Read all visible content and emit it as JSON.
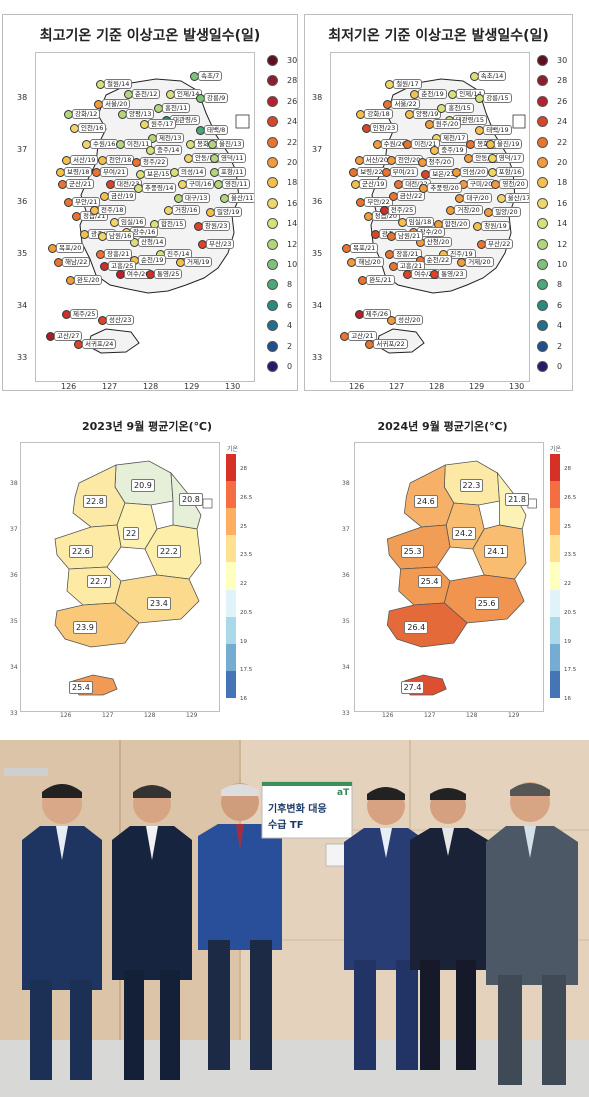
{
  "top_left": {
    "title": "최고기온 기준 이상고온 발생일수(일)",
    "y_ticks": [
      "38",
      "37",
      "36",
      "35",
      "34",
      "33"
    ],
    "x_ticks": [
      "126",
      "127",
      "128",
      "129",
      "130"
    ],
    "legend": [
      {
        "label": "30",
        "color": "#5e1020"
      },
      {
        "label": "28",
        "color": "#8c1d2c"
      },
      {
        "label": "26",
        "color": "#b8202e"
      },
      {
        "label": "24",
        "color": "#d7452b"
      },
      {
        "label": "22",
        "color": "#e8742f"
      },
      {
        "label": "20",
        "color": "#f09b3c"
      },
      {
        "label": "18",
        "color": "#f4bf4f"
      },
      {
        "label": "16",
        "color": "#f0d66a"
      },
      {
        "label": "14",
        "color": "#d9df7b"
      },
      {
        "label": "12",
        "color": "#b3d57c"
      },
      {
        "label": "10",
        "color": "#7fc07a"
      },
      {
        "label": "8",
        "color": "#4ba67a"
      },
      {
        "label": "6",
        "color": "#2a8a7d"
      },
      {
        "label": "4",
        "color": "#226e8c"
      },
      {
        "label": "2",
        "color": "#1f4f8f"
      },
      {
        "label": "0",
        "color": "#241c6b"
      }
    ],
    "stations": [
      {
        "label": "속초/7",
        "color": "#7fc07a"
      },
      {
        "label": "철원/14",
        "color": "#d9df7b"
      },
      {
        "label": "춘천/12",
        "color": "#b3d57c"
      },
      {
        "label": "인제/14",
        "color": "#d9df7b"
      },
      {
        "label": "강릉/9",
        "color": "#7fc07a"
      },
      {
        "label": "서울/20",
        "color": "#f09b3c"
      },
      {
        "label": "강화/12",
        "color": "#b3d57c"
      },
      {
        "label": "양평/13",
        "color": "#b3d57c"
      },
      {
        "label": "홍천/11",
        "color": "#b3d57c"
      },
      {
        "label": "대관령/5",
        "color": "#2a8a7d"
      },
      {
        "label": "원주/17",
        "color": "#f0d66a"
      },
      {
        "label": "인천/16",
        "color": "#f0d66a"
      },
      {
        "label": "태백/8",
        "color": "#4ba67a"
      },
      {
        "label": "제천/13",
        "color": "#b3d57c"
      },
      {
        "label": "수원/16",
        "color": "#f0d66a"
      },
      {
        "label": "이천/11",
        "color": "#b3d57c"
      },
      {
        "label": "충주/14",
        "color": "#d9df7b"
      },
      {
        "label": "봉화/14",
        "color": "#d9df7b"
      },
      {
        "label": "울진/13",
        "color": "#b3d57c"
      },
      {
        "label": "서산/19",
        "color": "#f4bf4f"
      },
      {
        "label": "천안/18",
        "color": "#f4bf4f"
      },
      {
        "label": "청주/22",
        "color": "#e8742f"
      },
      {
        "label": "안동/16",
        "color": "#f0d66a"
      },
      {
        "label": "영덕/11",
        "color": "#b3d57c"
      },
      {
        "label": "보령/18",
        "color": "#f4bf4f"
      },
      {
        "label": "부여/21",
        "color": "#e8742f"
      },
      {
        "label": "보은/15",
        "color": "#d9df7b"
      },
      {
        "label": "의성/14",
        "color": "#d9df7b"
      },
      {
        "label": "포항/11",
        "color": "#b3d57c"
      },
      {
        "label": "군산/21",
        "color": "#e8742f"
      },
      {
        "label": "대전/23",
        "color": "#d7452b"
      },
      {
        "label": "구미/16",
        "color": "#f0d66a"
      },
      {
        "label": "영천/11",
        "color": "#b3d57c"
      },
      {
        "label": "울산/11",
        "color": "#b3d57c"
      },
      {
        "label": "부안/21",
        "color": "#e8742f"
      },
      {
        "label": "금산/19",
        "color": "#f4bf4f"
      },
      {
        "label": "추풍령/14",
        "color": "#d9df7b"
      },
      {
        "label": "대구/13",
        "color": "#b3d57c"
      },
      {
        "label": "밀양/19",
        "color": "#f4bf4f"
      },
      {
        "label": "정읍/21",
        "color": "#e8742f"
      },
      {
        "label": "전주/18",
        "color": "#f4bf4f"
      },
      {
        "label": "임실/16",
        "color": "#f0d66a"
      },
      {
        "label": "합천/15",
        "color": "#d9df7b"
      },
      {
        "label": "거창/16",
        "color": "#f0d66a"
      },
      {
        "label": "장수/16",
        "color": "#f0d66a"
      },
      {
        "label": "산청/14",
        "color": "#d9df7b"
      },
      {
        "label": "창원/23",
        "color": "#d7452b"
      },
      {
        "label": "광주/19",
        "color": "#f4bf4f"
      },
      {
        "label": "남원/16",
        "color": "#f0d66a"
      },
      {
        "label": "진주/14",
        "color": "#d9df7b"
      },
      {
        "label": "부산/23",
        "color": "#d7452b"
      },
      {
        "label": "목포/20",
        "color": "#f09b3c"
      },
      {
        "label": "장흥/21",
        "color": "#e8742f"
      },
      {
        "label": "순천/19",
        "color": "#f4bf4f"
      },
      {
        "label": "거제/19",
        "color": "#f4bf4f"
      },
      {
        "label": "해남/22",
        "color": "#e8742f"
      },
      {
        "label": "고흥/25",
        "color": "#c9322c"
      },
      {
        "label": "여수/26",
        "color": "#b8202e"
      },
      {
        "label": "통영/25",
        "color": "#c9322c"
      },
      {
        "label": "완도/20",
        "color": "#f09b3c"
      },
      {
        "label": "제주/25",
        "color": "#c9322c"
      },
      {
        "label": "성산/23",
        "color": "#d7452b"
      },
      {
        "label": "고산/27",
        "color": "#a3202c"
      },
      {
        "label": "서귀포/24",
        "color": "#d7452b"
      }
    ]
  },
  "top_right": {
    "title": "최저기온 기준 이상고온 발생일수(일)",
    "y_ticks": [
      "38",
      "37",
      "36",
      "35",
      "34",
      "33"
    ],
    "x_ticks": [
      "126",
      "127",
      "128",
      "129",
      "130"
    ],
    "legend": [
      {
        "label": "30",
        "color": "#5e1020"
      },
      {
        "label": "28",
        "color": "#8c1d2c"
      },
      {
        "label": "26",
        "color": "#b8202e"
      },
      {
        "label": "24",
        "color": "#d7452b"
      },
      {
        "label": "22",
        "color": "#e8742f"
      },
      {
        "label": "20",
        "color": "#f09b3c"
      },
      {
        "label": "18",
        "color": "#f4bf4f"
      },
      {
        "label": "16",
        "color": "#f0d66a"
      },
      {
        "label": "14",
        "color": "#d9df7b"
      },
      {
        "label": "12",
        "color": "#b3d57c"
      },
      {
        "label": "10",
        "color": "#7fc07a"
      },
      {
        "label": "8",
        "color": "#4ba67a"
      },
      {
        "label": "6",
        "color": "#2a8a7d"
      },
      {
        "label": "4",
        "color": "#226e8c"
      },
      {
        "label": "2",
        "color": "#1f4f8f"
      },
      {
        "label": "0",
        "color": "#241c6b"
      }
    ],
    "stations": [
      {
        "label": "속초/14",
        "color": "#d9df7b"
      },
      {
        "label": "철원/17",
        "color": "#f0d66a"
      },
      {
        "label": "춘천/19",
        "color": "#f4bf4f"
      },
      {
        "label": "인제/14",
        "color": "#d9df7b"
      },
      {
        "label": "강릉/15",
        "color": "#d9df7b"
      },
      {
        "label": "서울/22",
        "color": "#e8742f"
      },
      {
        "label": "강화/18",
        "color": "#f4bf4f"
      },
      {
        "label": "양평/19",
        "color": "#f4bf4f"
      },
      {
        "label": "홍천/15",
        "color": "#d9df7b"
      },
      {
        "label": "대관령/15",
        "color": "#d9df7b"
      },
      {
        "label": "원주/20",
        "color": "#f09b3c"
      },
      {
        "label": "인천/23",
        "color": "#d7452b"
      },
      {
        "label": "태백/19",
        "color": "#f4bf4f"
      },
      {
        "label": "제천/17",
        "color": "#f0d66a"
      },
      {
        "label": "수원/20",
        "color": "#f09b3c"
      },
      {
        "label": "이천/21",
        "color": "#e8742f"
      },
      {
        "label": "충주/19",
        "color": "#f4bf4f"
      },
      {
        "label": "봉화/21",
        "color": "#e8742f"
      },
      {
        "label": "울진/19",
        "color": "#f4bf4f"
      },
      {
        "label": "서산/20",
        "color": "#f09b3c"
      },
      {
        "label": "천안/20",
        "color": "#f09b3c"
      },
      {
        "label": "청주/20",
        "color": "#f09b3c"
      },
      {
        "label": "안동/20",
        "color": "#f09b3c"
      },
      {
        "label": "영덕/17",
        "color": "#f0d66a"
      },
      {
        "label": "보령/22",
        "color": "#e8742f"
      },
      {
        "label": "부여/21",
        "color": "#e8742f"
      },
      {
        "label": "보은/23",
        "color": "#d7452b"
      },
      {
        "label": "의성/20",
        "color": "#f09b3c"
      },
      {
        "label": "포항/16",
        "color": "#f0d66a"
      },
      {
        "label": "군산/19",
        "color": "#f4bf4f"
      },
      {
        "label": "대전/22",
        "color": "#e8742f"
      },
      {
        "label": "구미/20",
        "color": "#f09b3c"
      },
      {
        "label": "영천/20",
        "color": "#f09b3c"
      },
      {
        "label": "울산/17",
        "color": "#f0d66a"
      },
      {
        "label": "부안/22",
        "color": "#e8742f"
      },
      {
        "label": "금산/22",
        "color": "#e8742f"
      },
      {
        "label": "추풍령/20",
        "color": "#f09b3c"
      },
      {
        "label": "대구/20",
        "color": "#f09b3c"
      },
      {
        "label": "밀양/20",
        "color": "#f09b3c"
      },
      {
        "label": "정읍/20",
        "color": "#f09b3c"
      },
      {
        "label": "전주/25",
        "color": "#c9322c"
      },
      {
        "label": "임실/18",
        "color": "#f4bf4f"
      },
      {
        "label": "합천/20",
        "color": "#f09b3c"
      },
      {
        "label": "거창/20",
        "color": "#f09b3c"
      },
      {
        "label": "장수/20",
        "color": "#f09b3c"
      },
      {
        "label": "산청/20",
        "color": "#f09b3c"
      },
      {
        "label": "창원/19",
        "color": "#f4bf4f"
      },
      {
        "label": "광주/23",
        "color": "#d7452b"
      },
      {
        "label": "남원/21",
        "color": "#e8742f"
      },
      {
        "label": "진주/19",
        "color": "#f4bf4f"
      },
      {
        "label": "부산/22",
        "color": "#e8742f"
      },
      {
        "label": "목포/21",
        "color": "#e8742f"
      },
      {
        "label": "장흥/21",
        "color": "#e8742f"
      },
      {
        "label": "순천/22",
        "color": "#e8742f"
      },
      {
        "label": "거제/20",
        "color": "#f09b3c"
      },
      {
        "label": "해남/20",
        "color": "#f09b3c"
      },
      {
        "label": "고흥/21",
        "color": "#e8742f"
      },
      {
        "label": "여수/24",
        "color": "#d7452b"
      },
      {
        "label": "통영/23",
        "color": "#d7452b"
      },
      {
        "label": "완도/21",
        "color": "#e8742f"
      },
      {
        "label": "제주/26",
        "color": "#b8202e"
      },
      {
        "label": "성산/20",
        "color": "#f09b3c"
      },
      {
        "label": "고산/21",
        "color": "#e8742f"
      },
      {
        "label": "서귀포/22",
        "color": "#e8742f"
      }
    ]
  },
  "mid_left": {
    "title": "2023년 9월 평균기온(℃)",
    "legend_title": "기온",
    "y_ticks": [
      "38",
      "37",
      "36",
      "35",
      "34",
      "33"
    ],
    "x_ticks": [
      "126",
      "127",
      "128",
      "129"
    ],
    "colorbar_ticks": [
      "28",
      "26.5",
      "25",
      "23.5",
      "22",
      "20.5",
      "19",
      "17.5",
      "16"
    ],
    "colorbar": [
      "#d73027",
      "#f46d43",
      "#fdae61",
      "#fee090",
      "#ffffbf",
      "#e0f3f8",
      "#abd9e9",
      "#74add1",
      "#4575b4"
    ],
    "regions": [
      {
        "label": "20.9",
        "color": "#e6f0d8"
      },
      {
        "label": "20.8",
        "color": "#e6f0d8"
      },
      {
        "label": "22.8",
        "color": "#fde9a6"
      },
      {
        "label": "22",
        "color": "#fff2b0"
      },
      {
        "label": "22.6",
        "color": "#fdeaa4"
      },
      {
        "label": "22.2",
        "color": "#fdeeaa"
      },
      {
        "label": "22.7",
        "color": "#fdeaa4"
      },
      {
        "label": "23.4",
        "color": "#fbd98d"
      },
      {
        "label": "23.9",
        "color": "#f9c879"
      },
      {
        "label": "25.4",
        "color": "#f29a53"
      }
    ]
  },
  "mid_right": {
    "title": "2024년 9월 평균기온(℃)",
    "legend_title": "기온",
    "y_ticks": [
      "38",
      "37",
      "36",
      "35",
      "34",
      "33"
    ],
    "x_ticks": [
      "126",
      "127",
      "128",
      "129"
    ],
    "colorbar_ticks": [
      "28",
      "26.5",
      "25",
      "23.5",
      "22",
      "20.5",
      "19",
      "17.5",
      "16"
    ],
    "colorbar": [
      "#d73027",
      "#f46d43",
      "#fdae61",
      "#fee090",
      "#ffffbf",
      "#e0f3f8",
      "#abd9e9",
      "#74add1",
      "#4575b4"
    ],
    "regions": [
      {
        "label": "22.3",
        "color": "#fde9a6"
      },
      {
        "label": "21.8",
        "color": "#fdf2b6"
      },
      {
        "label": "24.6",
        "color": "#f7b067"
      },
      {
        "label": "24.2",
        "color": "#f8bd70"
      },
      {
        "label": "25.3",
        "color": "#f19d55"
      },
      {
        "label": "24.1",
        "color": "#f8bd70"
      },
      {
        "label": "25.4",
        "color": "#f19a53"
      },
      {
        "label": "25.6",
        "color": "#f0944f"
      },
      {
        "label": "26.4",
        "color": "#e56a3a"
      },
      {
        "label": "27.4",
        "color": "#de4f32"
      }
    ]
  },
  "photo": {
    "sign_title": "기후변화 대응",
    "sign_subtitle": "수급 TF",
    "sign_logo": "aT"
  }
}
